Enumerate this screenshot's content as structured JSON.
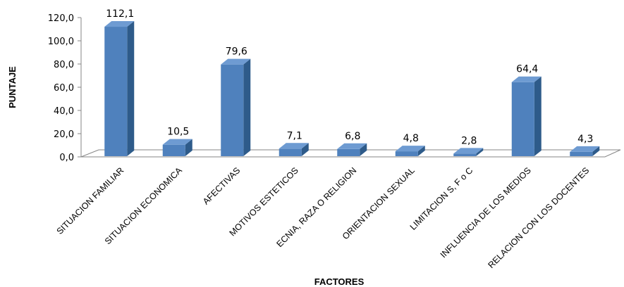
{
  "chart_data": {
    "type": "bar",
    "title": "",
    "xlabel": "FACTORES",
    "ylabel": "PUNTAJE",
    "ylim": [
      0,
      120
    ],
    "yticks": [
      "0,0",
      "20,0",
      "40,0",
      "60,0",
      "80,0",
      "100,0",
      "120,0"
    ],
    "categories": [
      "SITUACION FAMILIAR",
      "SITUACION ECONOMICA",
      "AFECTIVAS",
      "MOTIVOS ESTETICOS",
      "ECNIA, RAZA O RELIGION",
      "ORIENTACION SEXUAL",
      "LIMITACION S, F o C",
      "INFLUENCIA DE LOS MEDIOS",
      "RELACION CON LOS DOCENTES"
    ],
    "values": [
      112.1,
      10.5,
      79.6,
      7.1,
      6.8,
      4.8,
      2.8,
      64.4,
      4.3
    ],
    "value_labels": [
      "112,1",
      "10,5",
      "79,6",
      "7,1",
      "6,8",
      "4,8",
      "2,8",
      "64,4",
      "4,3"
    ],
    "grid": false,
    "legend": "none",
    "colors": {
      "bar_front": "#4F81BD",
      "bar_side": "#2E5B8A",
      "bar_top": "#6E9BD2",
      "floor": "#FFFFFF",
      "axis": "#868686"
    }
  }
}
